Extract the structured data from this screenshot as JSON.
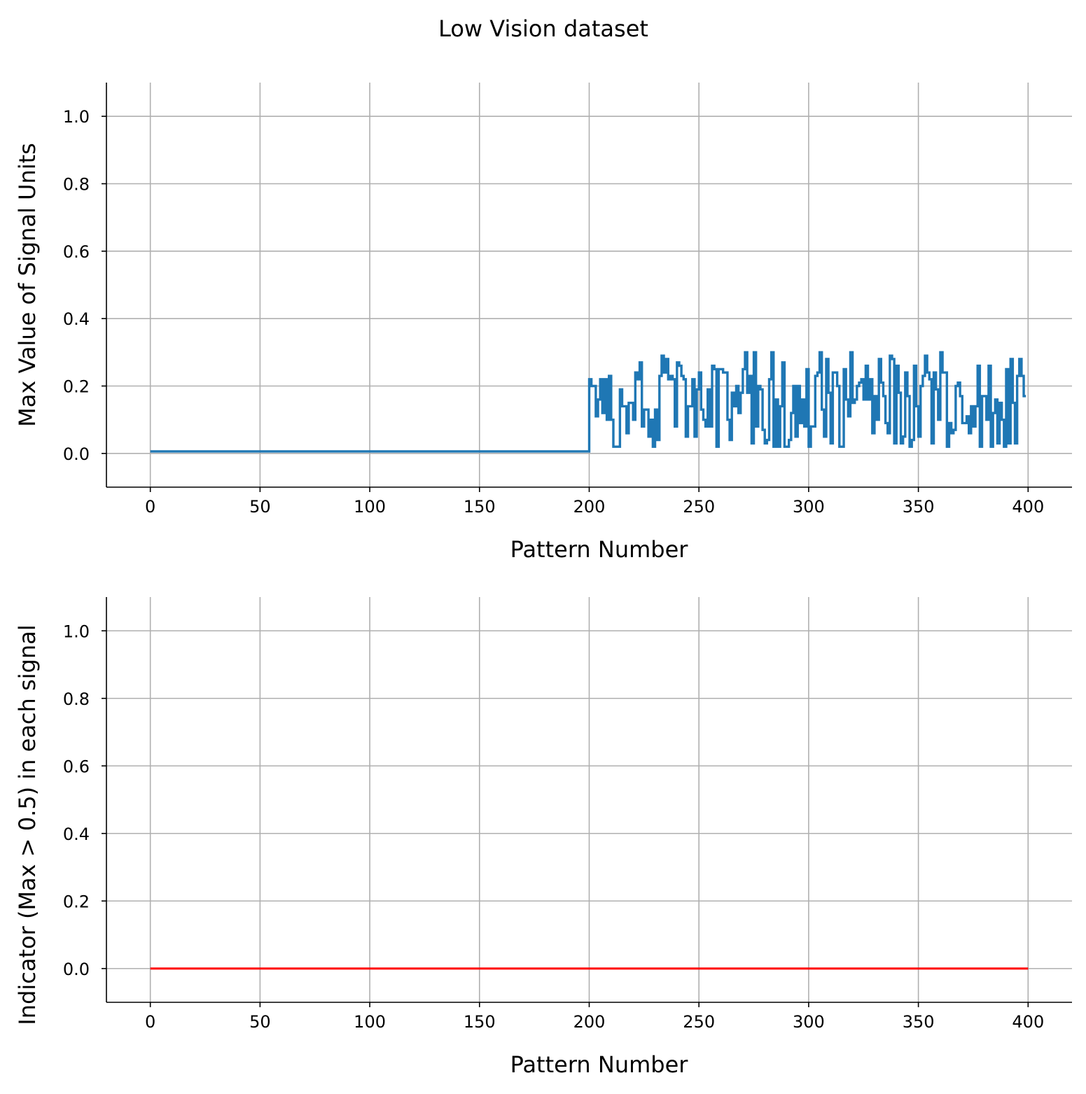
{
  "figure": {
    "title": "Low Vision dataset"
  },
  "colors": {
    "signal_max": "#1f77b4",
    "indicator": "#ff0000",
    "grid": "#b0b0b0"
  },
  "chart_data": [
    {
      "type": "line",
      "drawstyle": "steps",
      "title": "",
      "xlabel": "Pattern Number",
      "ylabel": "Max Value of Signal Units",
      "xlim": [
        -20,
        420
      ],
      "ylim": [
        -0.1,
        1.1
      ],
      "xticks": [
        0,
        50,
        100,
        150,
        200,
        250,
        300,
        350,
        400
      ],
      "yticks": [
        0.0,
        0.2,
        0.4,
        0.6,
        0.8,
        1.0
      ],
      "xtick_labels": [
        "0",
        "50",
        "100",
        "150",
        "200",
        "250",
        "300",
        "350",
        "400"
      ],
      "ytick_labels": [
        "0.0",
        "0.2",
        "0.4",
        "0.6",
        "0.8",
        "1.0"
      ],
      "grid": true,
      "series": [
        {
          "color": "#1f77b4",
          "x_start": 0,
          "values": [
            0.006,
            0.006,
            0.006,
            0.006,
            0.006,
            0.006,
            0.006,
            0.006,
            0.006,
            0.006,
            0.006,
            0.006,
            0.006,
            0.006,
            0.006,
            0.006,
            0.006,
            0.006,
            0.006,
            0.006,
            0.006,
            0.006,
            0.006,
            0.006,
            0.006,
            0.006,
            0.006,
            0.006,
            0.006,
            0.006,
            0.006,
            0.006,
            0.006,
            0.006,
            0.006,
            0.006,
            0.006,
            0.006,
            0.006,
            0.006,
            0.006,
            0.006,
            0.006,
            0.006,
            0.006,
            0.006,
            0.006,
            0.006,
            0.006,
            0.006,
            0.006,
            0.006,
            0.006,
            0.006,
            0.006,
            0.006,
            0.006,
            0.006,
            0.006,
            0.006,
            0.006,
            0.006,
            0.006,
            0.006,
            0.006,
            0.006,
            0.006,
            0.006,
            0.006,
            0.006,
            0.006,
            0.006,
            0.006,
            0.006,
            0.006,
            0.006,
            0.006,
            0.006,
            0.006,
            0.006,
            0.006,
            0.006,
            0.006,
            0.006,
            0.006,
            0.006,
            0.006,
            0.006,
            0.006,
            0.006,
            0.006,
            0.006,
            0.006,
            0.006,
            0.006,
            0.006,
            0.006,
            0.006,
            0.006,
            0.006,
            0.006,
            0.006,
            0.006,
            0.006,
            0.006,
            0.006,
            0.006,
            0.006,
            0.006,
            0.006,
            0.006,
            0.006,
            0.006,
            0.006,
            0.006,
            0.006,
            0.006,
            0.006,
            0.006,
            0.006,
            0.006,
            0.006,
            0.006,
            0.006,
            0.006,
            0.006,
            0.006,
            0.006,
            0.006,
            0.006,
            0.006,
            0.006,
            0.006,
            0.006,
            0.006,
            0.006,
            0.006,
            0.006,
            0.006,
            0.006,
            0.006,
            0.006,
            0.006,
            0.006,
            0.006,
            0.006,
            0.006,
            0.006,
            0.006,
            0.006,
            0.006,
            0.006,
            0.006,
            0.006,
            0.006,
            0.006,
            0.006,
            0.006,
            0.006,
            0.006,
            0.006,
            0.006,
            0.006,
            0.006,
            0.006,
            0.006,
            0.006,
            0.006,
            0.006,
            0.006,
            0.006,
            0.006,
            0.006,
            0.006,
            0.006,
            0.006,
            0.006,
            0.006,
            0.006,
            0.006,
            0.006,
            0.006,
            0.006,
            0.006,
            0.006,
            0.006,
            0.006,
            0.006,
            0.006,
            0.006,
            0.006,
            0.006,
            0.006,
            0.006,
            0.006,
            0.006,
            0.006,
            0.006,
            0.006,
            0.006,
            0.22,
            0.2,
            0.2,
            0.11,
            0.16,
            0.22,
            0.12,
            0.22,
            0.1,
            0.23,
            0.1,
            0.02,
            0.02,
            0.02,
            0.19,
            0.14,
            0.14,
            0.06,
            0.15,
            0.15,
            0.1,
            0.24,
            0.22,
            0.27,
            0.08,
            0.13,
            0.13,
            0.05,
            0.1,
            0.02,
            0.13,
            0.04,
            0.23,
            0.29,
            0.24,
            0.28,
            0.22,
            0.23,
            0.22,
            0.08,
            0.27,
            0.26,
            0.23,
            0.22,
            0.05,
            0.14,
            0.14,
            0.22,
            0.05,
            0.19,
            0.24,
            0.13,
            0.1,
            0.08,
            0.19,
            0.08,
            0.26,
            0.25,
            0.02,
            0.25,
            0.25,
            0.24,
            0.24,
            0.1,
            0.04,
            0.18,
            0.14,
            0.2,
            0.12,
            0.18,
            0.25,
            0.3,
            0.18,
            0.23,
            0.03,
            0.3,
            0.08,
            0.2,
            0.19,
            0.07,
            0.03,
            0.04,
            0.22,
            0.3,
            0.02,
            0.16,
            0.02,
            0.14,
            0.27,
            0.02,
            0.02,
            0.04,
            0.12,
            0.2,
            0.05,
            0.2,
            0.09,
            0.16,
            0.08,
            0.25,
            0.02,
            0.08,
            0.08,
            0.23,
            0.24,
            0.3,
            0.13,
            0.05,
            0.28,
            0.18,
            0.03,
            0.24,
            0.24,
            0.2,
            0.02,
            0.02,
            0.25,
            0.16,
            0.11,
            0.3,
            0.15,
            0.16,
            0.2,
            0.21,
            0.22,
            0.16,
            0.26,
            0.16,
            0.22,
            0.06,
            0.17,
            0.1,
            0.28,
            0.21,
            0.17,
            0.09,
            0.06,
            0.29,
            0.28,
            0.03,
            0.26,
            0.18,
            0.03,
            0.05,
            0.24,
            0.17,
            0.02,
            0.04,
            0.26,
            0.14,
            0.05,
            0.2,
            0.23,
            0.29,
            0.24,
            0.22,
            0.03,
            0.24,
            0.19,
            0.1,
            0.3,
            0.24,
            0.24,
            0.02,
            0.09,
            0.06,
            0.07,
            0.2,
            0.21,
            0.17,
            0.09,
            0.09,
            0.11,
            0.06,
            0.14,
            0.08,
            0.14,
            0.26,
            0.02,
            0.17,
            0.17,
            0.1,
            0.26,
            0.02,
            0.12,
            0.16,
            0.03,
            0.15,
            0.1,
            0.02,
            0.25,
            0.03,
            0.28,
            0.15,
            0.03,
            0.23,
            0.28,
            0.23,
            0.17,
            0.17
          ]
        }
      ]
    },
    {
      "type": "line",
      "title": "",
      "xlabel": "Pattern Number",
      "ylabel": "Indicator (Max > 0.5) in each signal",
      "xlim": [
        -20,
        420
      ],
      "ylim": [
        -0.1,
        1.1
      ],
      "xticks": [
        0,
        50,
        100,
        150,
        200,
        250,
        300,
        350,
        400
      ],
      "yticks": [
        0.0,
        0.2,
        0.4,
        0.6,
        0.8,
        1.0
      ],
      "xtick_labels": [
        "0",
        "50",
        "100",
        "150",
        "200",
        "250",
        "300",
        "350",
        "400"
      ],
      "ytick_labels": [
        "0.0",
        "0.2",
        "0.4",
        "0.6",
        "0.8",
        "1.0"
      ],
      "grid": true,
      "series": [
        {
          "color": "#ff0000",
          "x": [
            0,
            400
          ],
          "y": [
            0,
            0
          ]
        }
      ]
    }
  ]
}
